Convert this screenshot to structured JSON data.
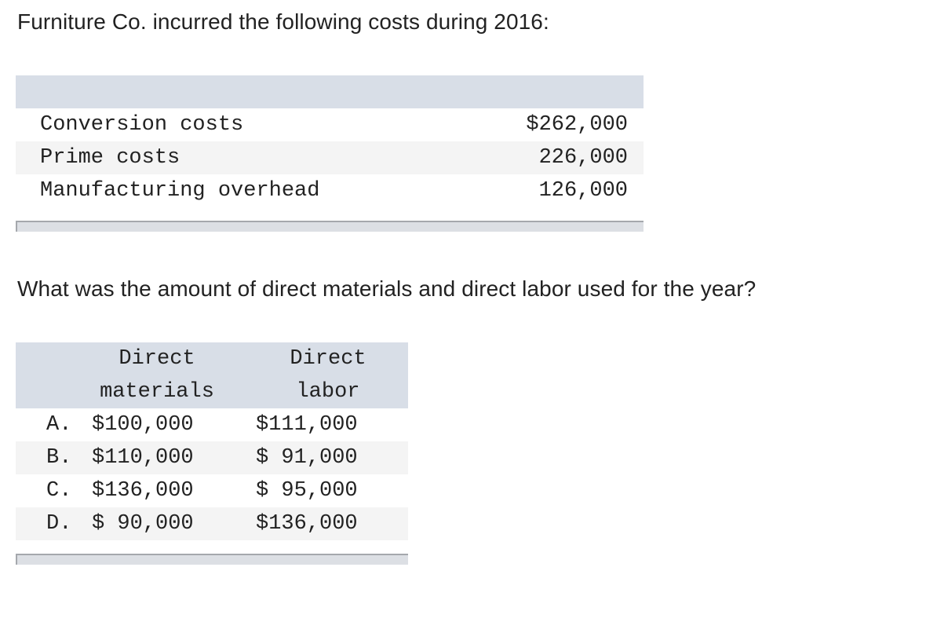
{
  "intro": "Furniture Co. incurred the following costs during 2016:",
  "cost_table": {
    "rows": [
      {
        "label": "Conversion costs",
        "value": "$262,000"
      },
      {
        "label": "Prime costs",
        "value": "226,000"
      },
      {
        "label": "Manufacturing overhead",
        "value": "126,000"
      }
    ]
  },
  "question": "What was the amount of direct materials and direct labor used for the year?",
  "answer_table": {
    "headers": {
      "direct_materials": [
        "Direct",
        "materials"
      ],
      "direct_labor": [
        "Direct",
        "labor"
      ]
    },
    "options": [
      {
        "letter": "A.",
        "materials": "$100,000",
        "labor": "$111,000"
      },
      {
        "letter": "B.",
        "materials": "$110,000",
        "labor": "$ 91,000"
      },
      {
        "letter": "C.",
        "materials": "$136,000",
        "labor": "$ 95,000"
      },
      {
        "letter": "D.",
        "materials": "$ 90,000",
        "labor": "$136,000"
      }
    ]
  }
}
